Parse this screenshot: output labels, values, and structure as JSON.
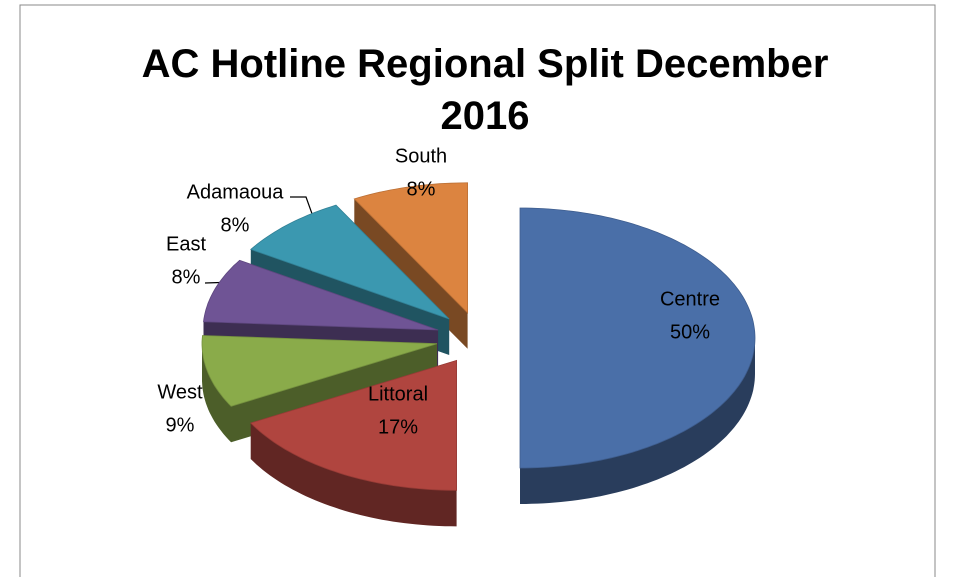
{
  "chart_data": {
    "type": "pie3d",
    "title": "AC Hotline Regional Split December 2016",
    "categories": [
      "Centre",
      "Littoral",
      "West",
      "East",
      "Adamaoua",
      "South"
    ],
    "values": [
      50,
      17,
      9,
      8,
      8,
      8
    ],
    "value_labels": [
      "50%",
      "17%",
      "9%",
      "8%",
      "8%",
      "8%"
    ],
    "colors": [
      "#4a6fa8",
      "#b0453f",
      "#8aab4a",
      "#6f5495",
      "#3b98b0",
      "#dc8440"
    ]
  }
}
